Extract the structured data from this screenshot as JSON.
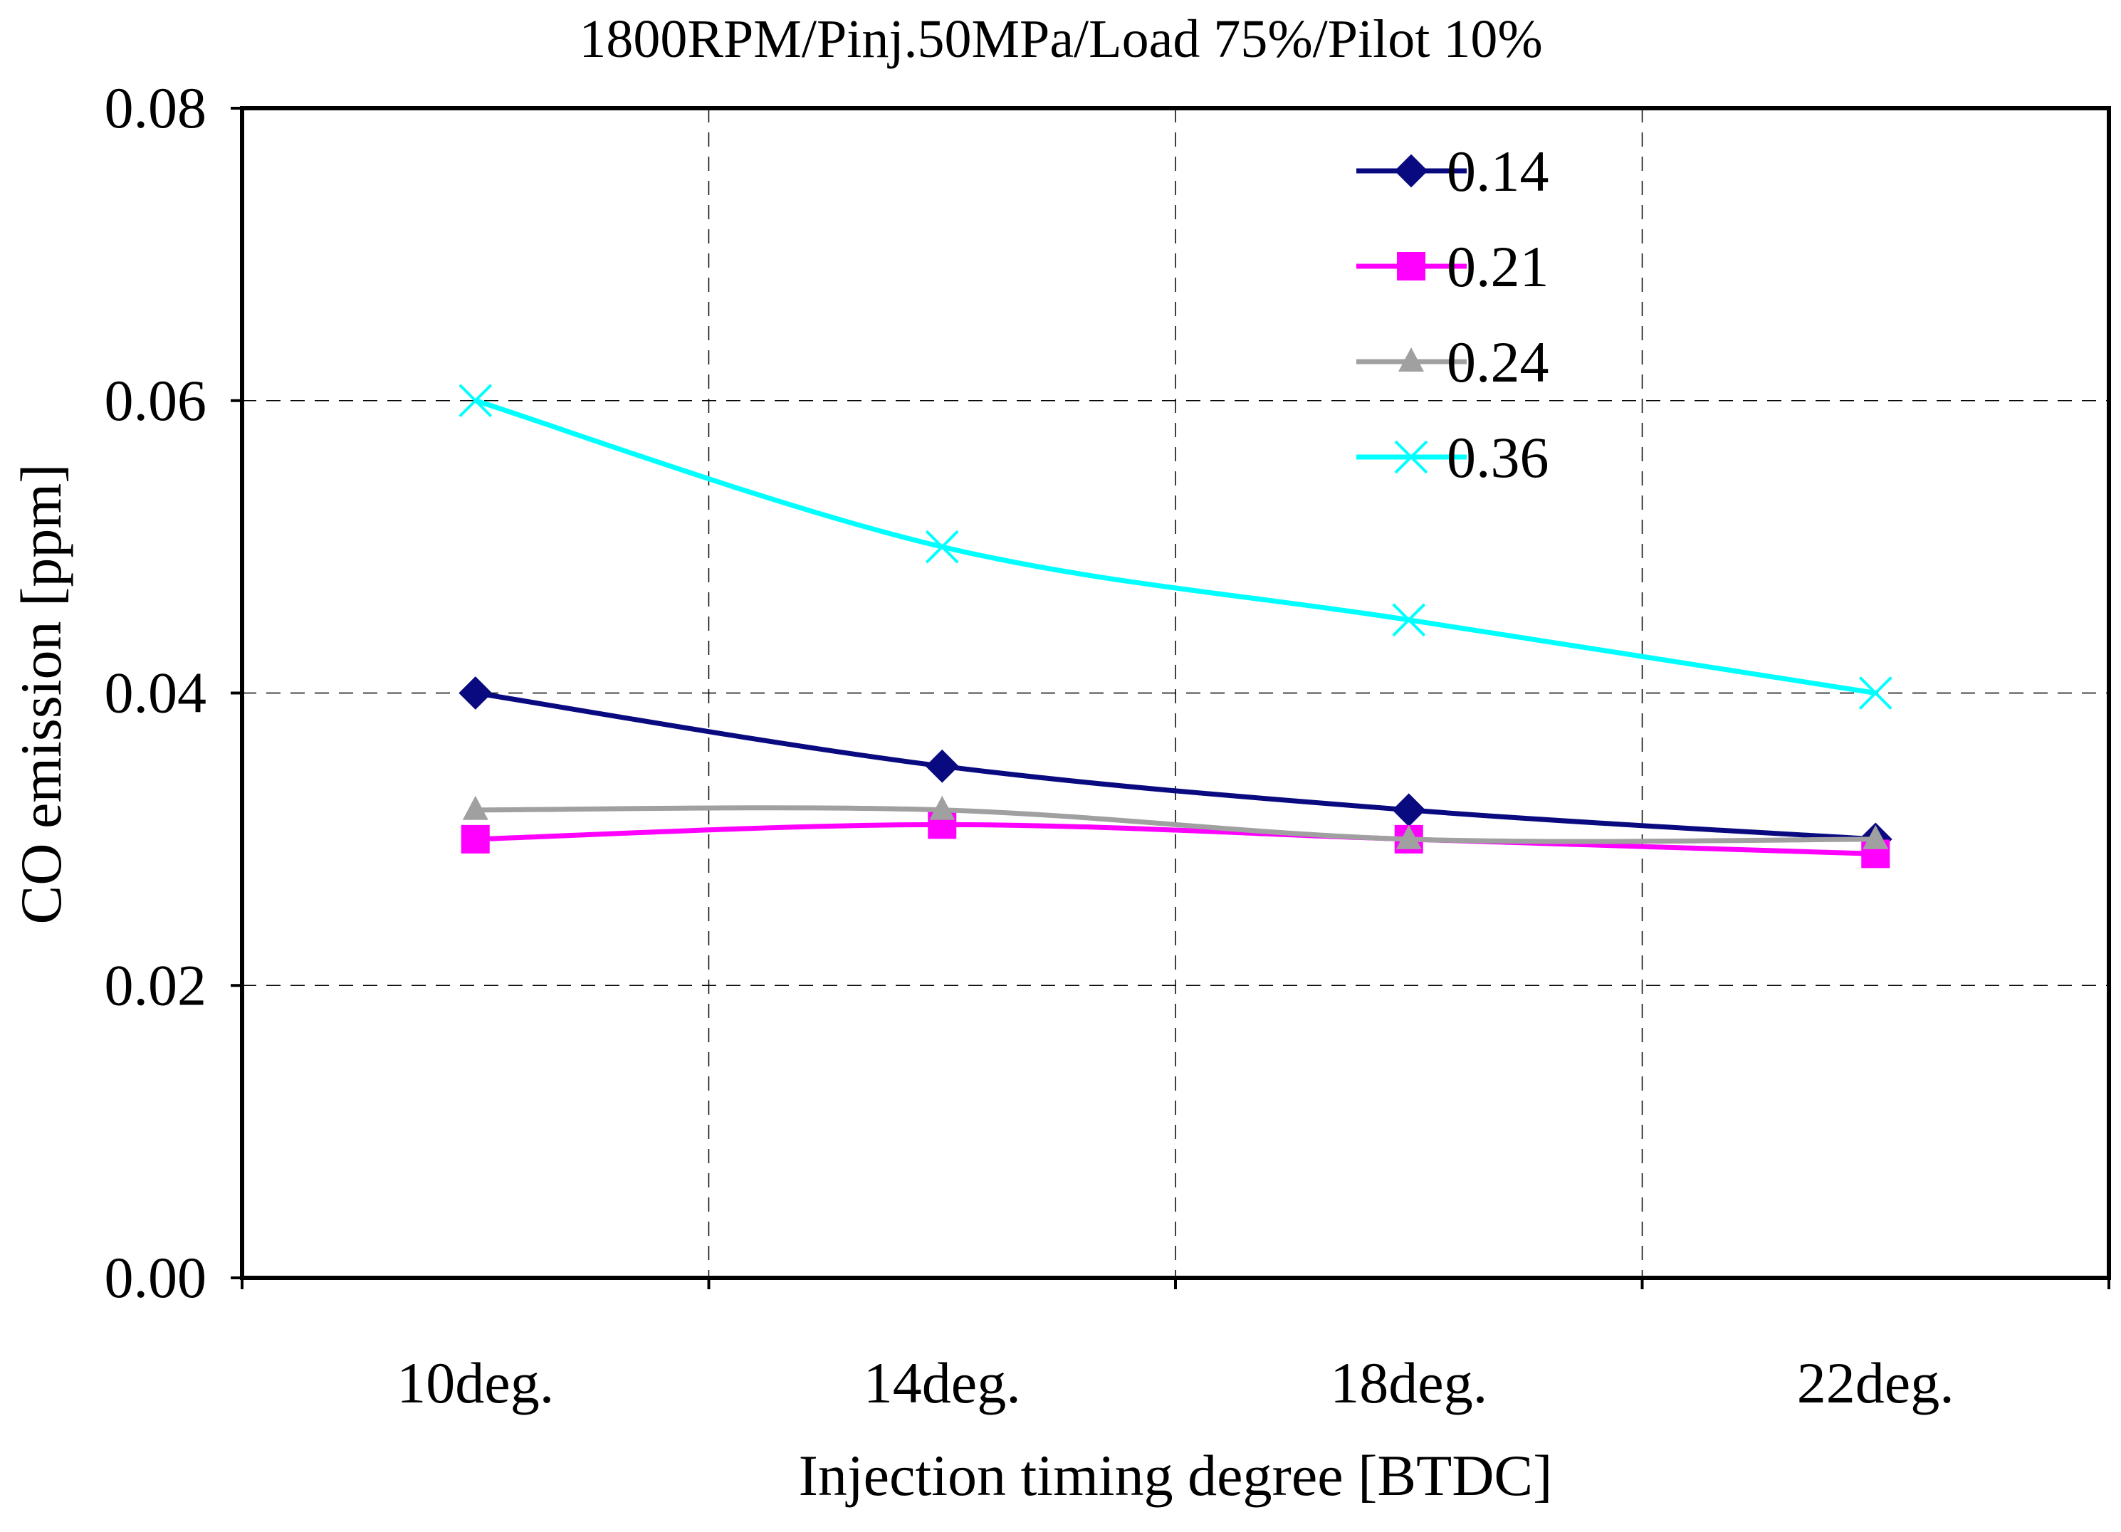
{
  "chart_data": {
    "type": "line",
    "title": "1800RPM/Pinj.50MPa/Load 75%/Pilot 10%",
    "xlabel": "Injection timing degree [BTDC]",
    "ylabel": "CO emission [ppm]",
    "categories": [
      "10deg.",
      "14deg.",
      "18deg.",
      "22deg."
    ],
    "ylim": [
      0,
      0.08
    ],
    "yticks": [
      "0.00",
      "0.02",
      "0.04",
      "0.06",
      "0.08"
    ],
    "grid": true,
    "legend_position": "top-right",
    "series": [
      {
        "name": "0.14",
        "marker": "diamond",
        "color": "#0a0a80",
        "values": [
          0.04,
          0.035,
          0.032,
          0.03
        ]
      },
      {
        "name": "0.21",
        "marker": "square",
        "color": "#ff00ff",
        "values": [
          0.03,
          0.031,
          0.03,
          0.029
        ]
      },
      {
        "name": "0.24",
        "marker": "triangle",
        "color": "#a0a0a0",
        "values": [
          0.032,
          0.032,
          0.03,
          0.03
        ]
      },
      {
        "name": "0.36",
        "marker": "x",
        "color": "#00ffff",
        "values": [
          0.06,
          0.05,
          0.045,
          0.04
        ]
      }
    ]
  }
}
